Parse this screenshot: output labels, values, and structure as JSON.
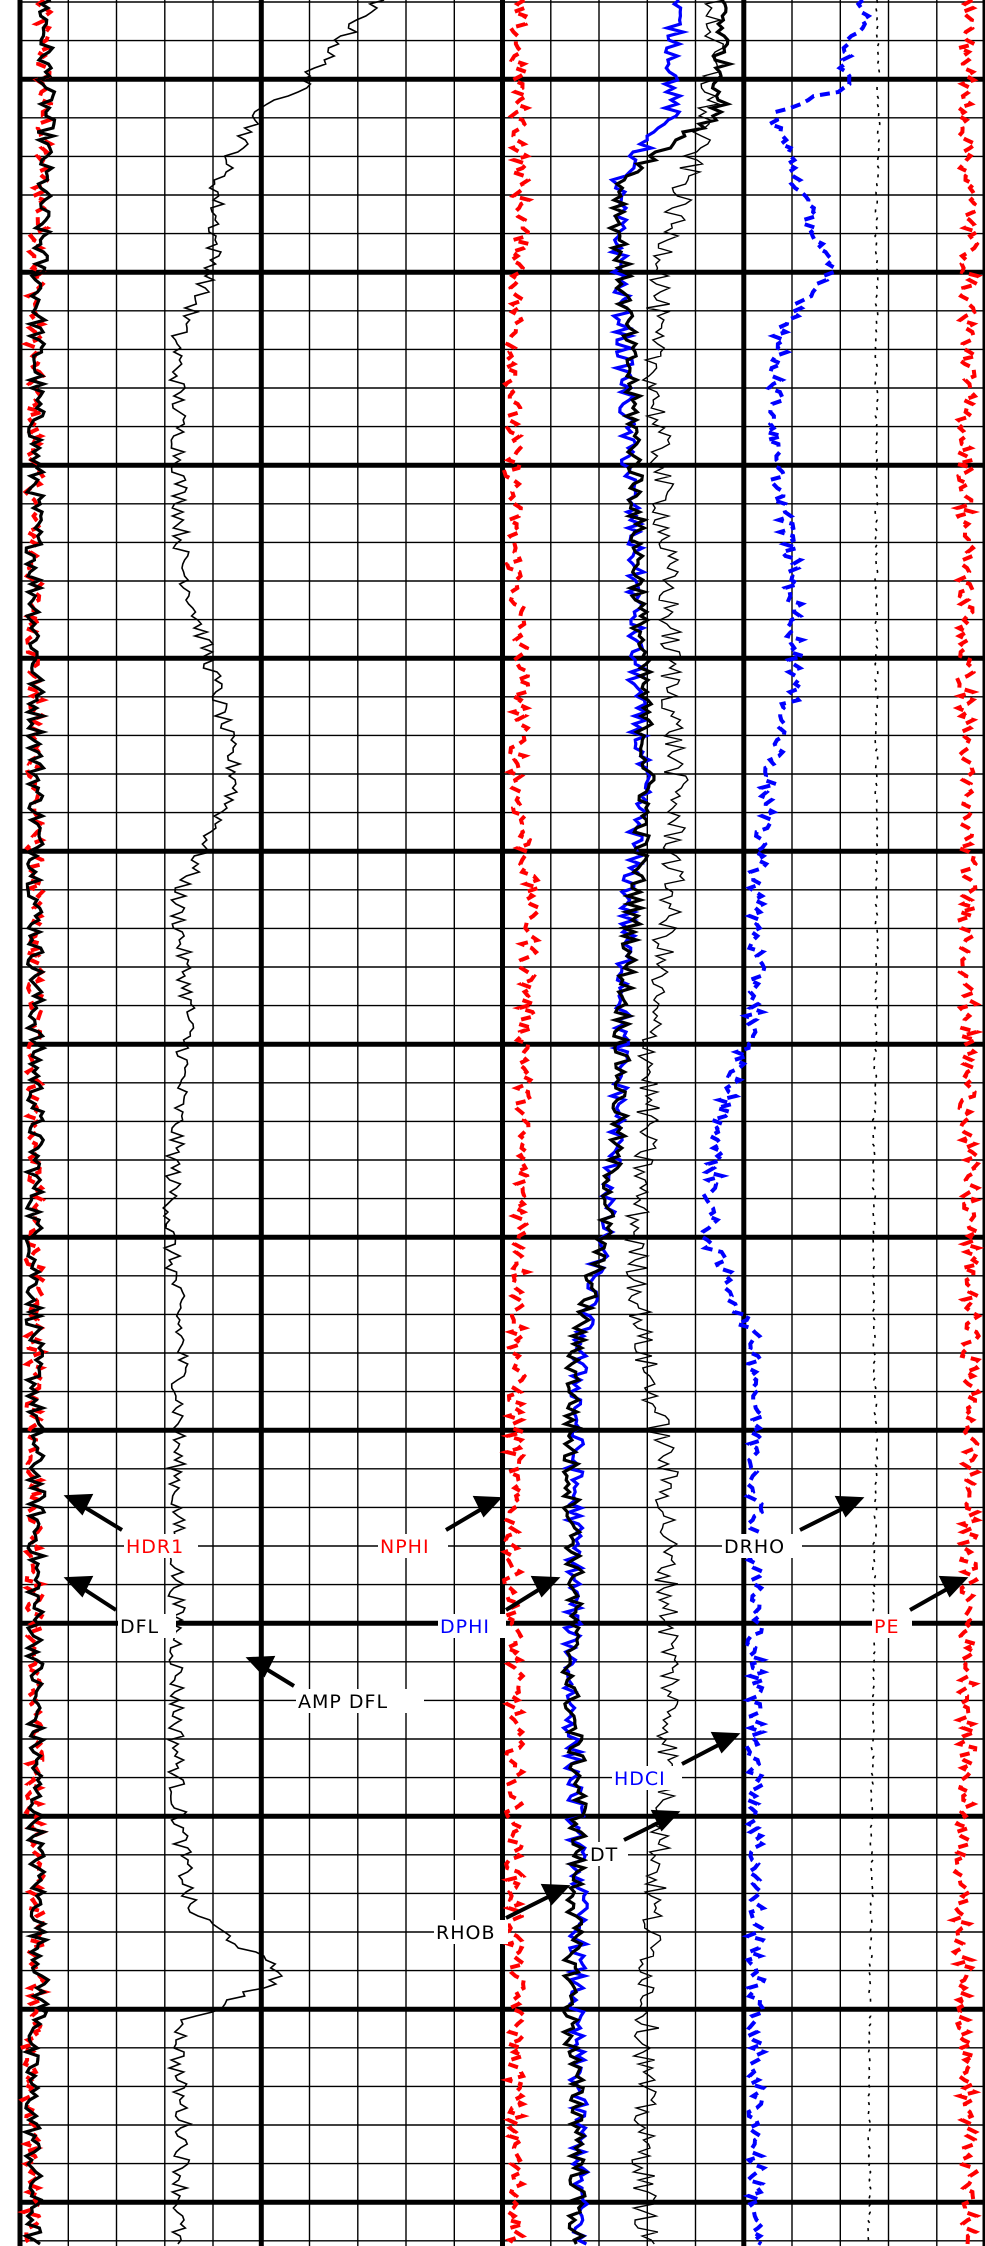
{
  "chart_data": {
    "type": "line",
    "title": "",
    "xlabel": "",
    "ylabel": "",
    "grid": true,
    "grid_style": "thin lines every cell, heavy line every fifth cell",
    "depth_range_relative": [
      0,
      100
    ],
    "tracks": [
      {
        "name": "resistivity-track",
        "series": [
          {
            "name": "HDR1",
            "color": "#ff0000",
            "style": "dashed",
            "y": [
              0,
              5,
              10,
              15,
              20,
              25,
              30,
              35,
              40,
              45,
              50,
              55,
              60,
              65,
              66.5,
              70,
              75,
              80,
              85,
              90,
              91,
              95,
              100
            ],
            "x": [
              0.09,
              0.1,
              0.08,
              0.06,
              0.06,
              0.055,
              0.06,
              0.065,
              0.06,
              0.06,
              0.06,
              0.06,
              0.06,
              0.06,
              0.065,
              0.06,
              0.06,
              0.06,
              0.07,
              0.08,
              0.03,
              0.05,
              0.05
            ]
          },
          {
            "name": "DFL",
            "color": "#000000",
            "style": "solid",
            "y": [
              0,
              5,
              10,
              15,
              20,
              25,
              30,
              35,
              40,
              45,
              50,
              55,
              60,
              65,
              66.5,
              70,
              75,
              80,
              85,
              90,
              91,
              95,
              100
            ],
            "x": [
              0.1,
              0.11,
              0.09,
              0.07,
              0.065,
              0.06,
              0.065,
              0.07,
              0.065,
              0.065,
              0.065,
              0.06,
              0.06,
              0.065,
              0.07,
              0.065,
              0.065,
              0.065,
              0.075,
              0.09,
              0.04,
              0.055,
              0.055
            ]
          }
        ]
      },
      {
        "name": "gamma-track",
        "series": [
          {
            "name": "AMP DFL",
            "color": "#000000",
            "style": "solid",
            "y": [
              0,
              4,
              5,
              8,
              12,
              15,
              20,
              25,
              30,
              35,
              40,
              45,
              50,
              55,
              60,
              65,
              70,
              75,
              80,
              85,
              88,
              90,
              92,
              95,
              100
            ],
            "x": [
              0.88,
              0.55,
              0.4,
              0.22,
              0.2,
              0.05,
              0.06,
              0.07,
              0.2,
              0.3,
              0.05,
              0.1,
              0.05,
              0.02,
              0.07,
              0.05,
              0.05,
              0.05,
              0.05,
              0.1,
              0.5,
              0.08,
              0.05,
              0.08,
              0.05
            ]
          }
        ]
      },
      {
        "name": "porosity-density-track",
        "series": [
          {
            "name": "NPHI",
            "color": "#ff0000",
            "style": "dashed",
            "y": [
              0,
              5,
              10,
              15,
              20,
              25,
              30,
              35,
              40,
              45,
              50,
              55,
              60,
              65,
              70,
              75,
              80,
              85,
              90,
              95,
              100
            ],
            "x": [
              0.06,
              0.07,
              0.08,
              0.05,
              0.04,
              0.05,
              0.08,
              0.06,
              0.12,
              0.1,
              0.08,
              0.08,
              0.06,
              0.05,
              0.04,
              0.05,
              0.05,
              0.05,
              0.06,
              0.05,
              0.06
            ]
          },
          {
            "name": "DPHI",
            "color": "#0000ff",
            "style": "solid",
            "y": [
              0,
              5,
              8,
              10,
              15,
              20,
              25,
              30,
              35,
              40,
              45,
              50,
              55,
              60,
              65,
              70,
              75,
              80,
              85,
              90,
              95,
              100
            ],
            "x": [
              0.72,
              0.7,
              0.48,
              0.48,
              0.5,
              0.52,
              0.55,
              0.55,
              0.58,
              0.52,
              0.5,
              0.48,
              0.42,
              0.32,
              0.3,
              0.3,
              0.28,
              0.3,
              0.32,
              0.3,
              0.32,
              0.32
            ]
          },
          {
            "name": "RHOB",
            "color": "#000000",
            "style": "solid",
            "y": [
              0,
              5,
              8,
              10,
              15,
              20,
              25,
              30,
              35,
              40,
              45,
              50,
              55,
              60,
              65,
              70,
              75,
              80,
              85,
              90,
              95,
              100
            ],
            "x": [
              0.92,
              0.9,
              0.5,
              0.48,
              0.52,
              0.55,
              0.56,
              0.58,
              0.6,
              0.55,
              0.5,
              0.48,
              0.42,
              0.3,
              0.28,
              0.3,
              0.28,
              0.32,
              0.3,
              0.28,
              0.32,
              0.3
            ]
          },
          {
            "name": "DT",
            "color": "#000000",
            "style": "thin",
            "y": [
              0,
              5,
              10,
              15,
              20,
              25,
              30,
              35,
              40,
              45,
              50,
              55,
              60,
              65,
              70,
              75,
              80,
              85,
              90,
              95,
              100
            ],
            "x": [
              0.88,
              0.85,
              0.7,
              0.62,
              0.65,
              0.68,
              0.7,
              0.72,
              0.7,
              0.62,
              0.6,
              0.55,
              0.58,
              0.68,
              0.68,
              0.7,
              0.68,
              0.62,
              0.6,
              0.58,
              0.6
            ]
          }
        ]
      },
      {
        "name": "correction-track",
        "series": [
          {
            "name": "HDCI",
            "color": "#0000ff",
            "style": "dashed",
            "y": [
              0,
              4,
              5,
              8,
              12,
              15,
              20,
              25,
              30,
              35,
              40,
              45,
              50,
              55,
              60,
              65,
              70,
              75,
              80,
              85,
              90,
              95,
              100
            ],
            "x": [
              0.5,
              0.4,
              0.12,
              0.22,
              0.35,
              0.15,
              0.12,
              0.2,
              0.22,
              0.1,
              0.05,
              0.05,
              -0.1,
              -0.15,
              0.05,
              0.05,
              0.05,
              0.05,
              0.05,
              0.05,
              0.05,
              0.05,
              0.05
            ]
          },
          {
            "name": "DRHO",
            "color": "#000000",
            "style": "dotted",
            "y": [
              0,
              5,
              10,
              15,
              20,
              25,
              30,
              35,
              40,
              45,
              50,
              55,
              60,
              65,
              70,
              75,
              80,
              85,
              90,
              95,
              100
            ],
            "x": [
              0.55,
              0.56,
              0.55,
              0.55,
              0.55,
              0.55,
              0.55,
              0.55,
              0.55,
              0.55,
              0.54,
              0.54,
              0.54,
              0.55,
              0.54,
              0.54,
              0.53,
              0.53,
              0.52,
              0.52,
              0.52
            ]
          },
          {
            "name": "PE",
            "color": "#ff0000",
            "style": "dashed",
            "y": [
              0,
              5,
              10,
              15,
              20,
              25,
              30,
              35,
              40,
              45,
              50,
              55,
              60,
              65,
              70,
              75,
              80,
              85,
              90,
              95,
              100
            ],
            "x": [
              0.93,
              0.92,
              0.94,
              0.93,
              0.92,
              0.92,
              0.92,
              0.92,
              0.93,
              0.93,
              0.93,
              0.94,
              0.94,
              0.94,
              0.93,
              0.93,
              0.92,
              0.9,
              0.92,
              0.93,
              0.93
            ]
          }
        ]
      }
    ],
    "labels": [
      {
        "text": "HDR1",
        "color": "#ff0000"
      },
      {
        "text": "DFL",
        "color": "#000000"
      },
      {
        "text": "AMP DFL",
        "color": "#000000"
      },
      {
        "text": "NPHI",
        "color": "#ff0000"
      },
      {
        "text": "DPHI",
        "color": "#0000ff"
      },
      {
        "text": "DRHO",
        "color": "#000000"
      },
      {
        "text": "PE",
        "color": "#ff0000"
      },
      {
        "text": "HDCI",
        "color": "#0000ff"
      },
      {
        "text": "DT",
        "color": "#000000"
      },
      {
        "text": "RHOB",
        "color": "#000000"
      }
    ]
  }
}
